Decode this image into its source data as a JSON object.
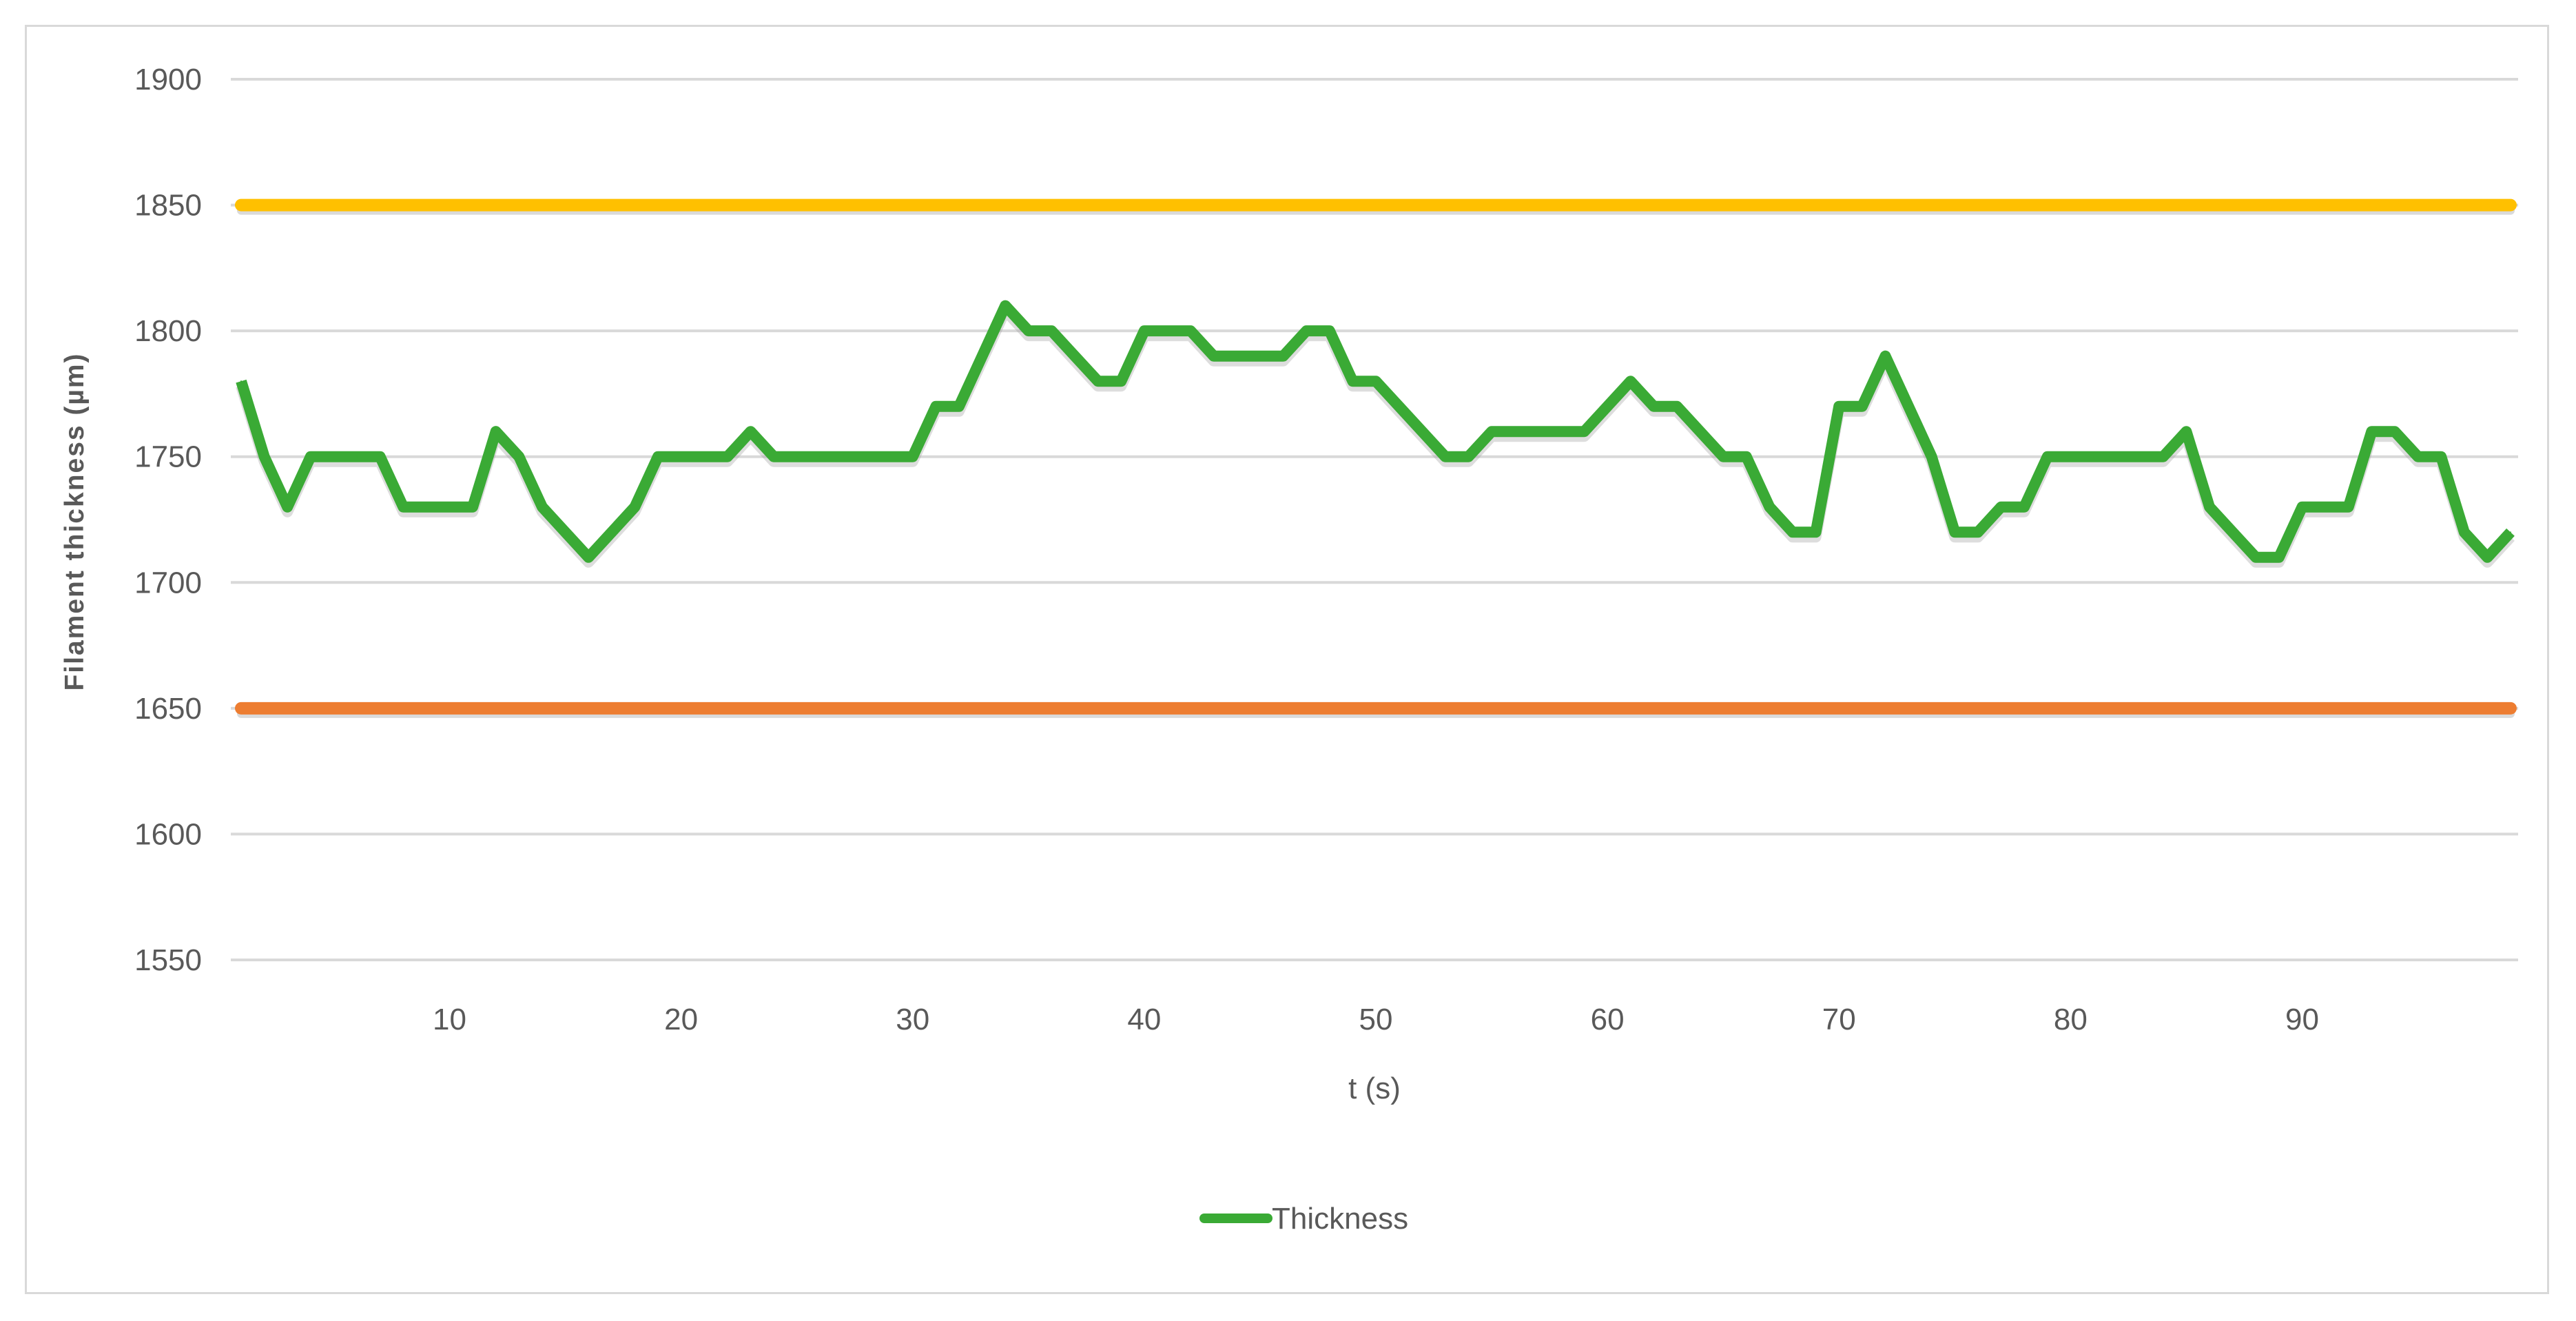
{
  "chart_data": {
    "type": "line",
    "title": "",
    "xlabel": "t (s)",
    "ylabel": "Filament thickness (µm)",
    "xlim": [
      1,
      99
    ],
    "ylim": [
      1550,
      1900
    ],
    "x_ticks": [
      "10",
      "20",
      "30",
      "40",
      "50",
      "60",
      "70",
      "80",
      "90"
    ],
    "y_ticks": [
      "1550",
      "1600",
      "1650",
      "1700",
      "1750",
      "1800",
      "1850",
      "1900"
    ],
    "grid": true,
    "legend_position": "bottom-center",
    "legend_label": "Thickness",
    "reference_lines": [
      {
        "value": 1850,
        "color": "#ffc000"
      },
      {
        "value": 1650,
        "color": "#ed7d31"
      }
    ],
    "series": [
      {
        "name": "Thickness",
        "color": "#3aaa35",
        "x": [
          1,
          2,
          3,
          4,
          5,
          6,
          7,
          8,
          9,
          10,
          11,
          12,
          13,
          14,
          15,
          16,
          17,
          18,
          19,
          20,
          21,
          22,
          23,
          24,
          25,
          26,
          27,
          28,
          29,
          30,
          31,
          32,
          33,
          34,
          35,
          36,
          37,
          38,
          39,
          40,
          41,
          42,
          43,
          44,
          45,
          46,
          47,
          48,
          49,
          50,
          51,
          52,
          53,
          54,
          55,
          56,
          57,
          58,
          59,
          60,
          61,
          62,
          63,
          64,
          65,
          66,
          67,
          68,
          69,
          70,
          71,
          72,
          73,
          74,
          75,
          76,
          77,
          78,
          79,
          80,
          81,
          82,
          83,
          84,
          85,
          86,
          87,
          88,
          89,
          90,
          91,
          92,
          93,
          94,
          95,
          96,
          97,
          98,
          99
        ],
        "values": [
          1780,
          1750,
          1730,
          1750,
          1750,
          1750,
          1750,
          1730,
          1730,
          1730,
          1730,
          1760,
          1750,
          1730,
          1720,
          1710,
          1720,
          1730,
          1750,
          1750,
          1750,
          1750,
          1760,
          1750,
          1750,
          1750,
          1750,
          1750,
          1750,
          1750,
          1770,
          1770,
          1790,
          1810,
          1800,
          1800,
          1790,
          1780,
          1780,
          1800,
          1800,
          1800,
          1790,
          1790,
          1790,
          1790,
          1800,
          1800,
          1780,
          1780,
          1770,
          1760,
          1750,
          1750,
          1760,
          1760,
          1760,
          1760,
          1760,
          1770,
          1780,
          1770,
          1770,
          1760,
          1750,
          1750,
          1730,
          1720,
          1720,
          1770,
          1770,
          1790,
          1770,
          1750,
          1720,
          1720,
          1730,
          1730,
          1750,
          1750,
          1750,
          1750,
          1750,
          1750,
          1760,
          1730,
          1720,
          1710,
          1710,
          1730,
          1730,
          1730,
          1760,
          1760,
          1750,
          1750,
          1720,
          1710,
          1720
        ]
      }
    ]
  }
}
